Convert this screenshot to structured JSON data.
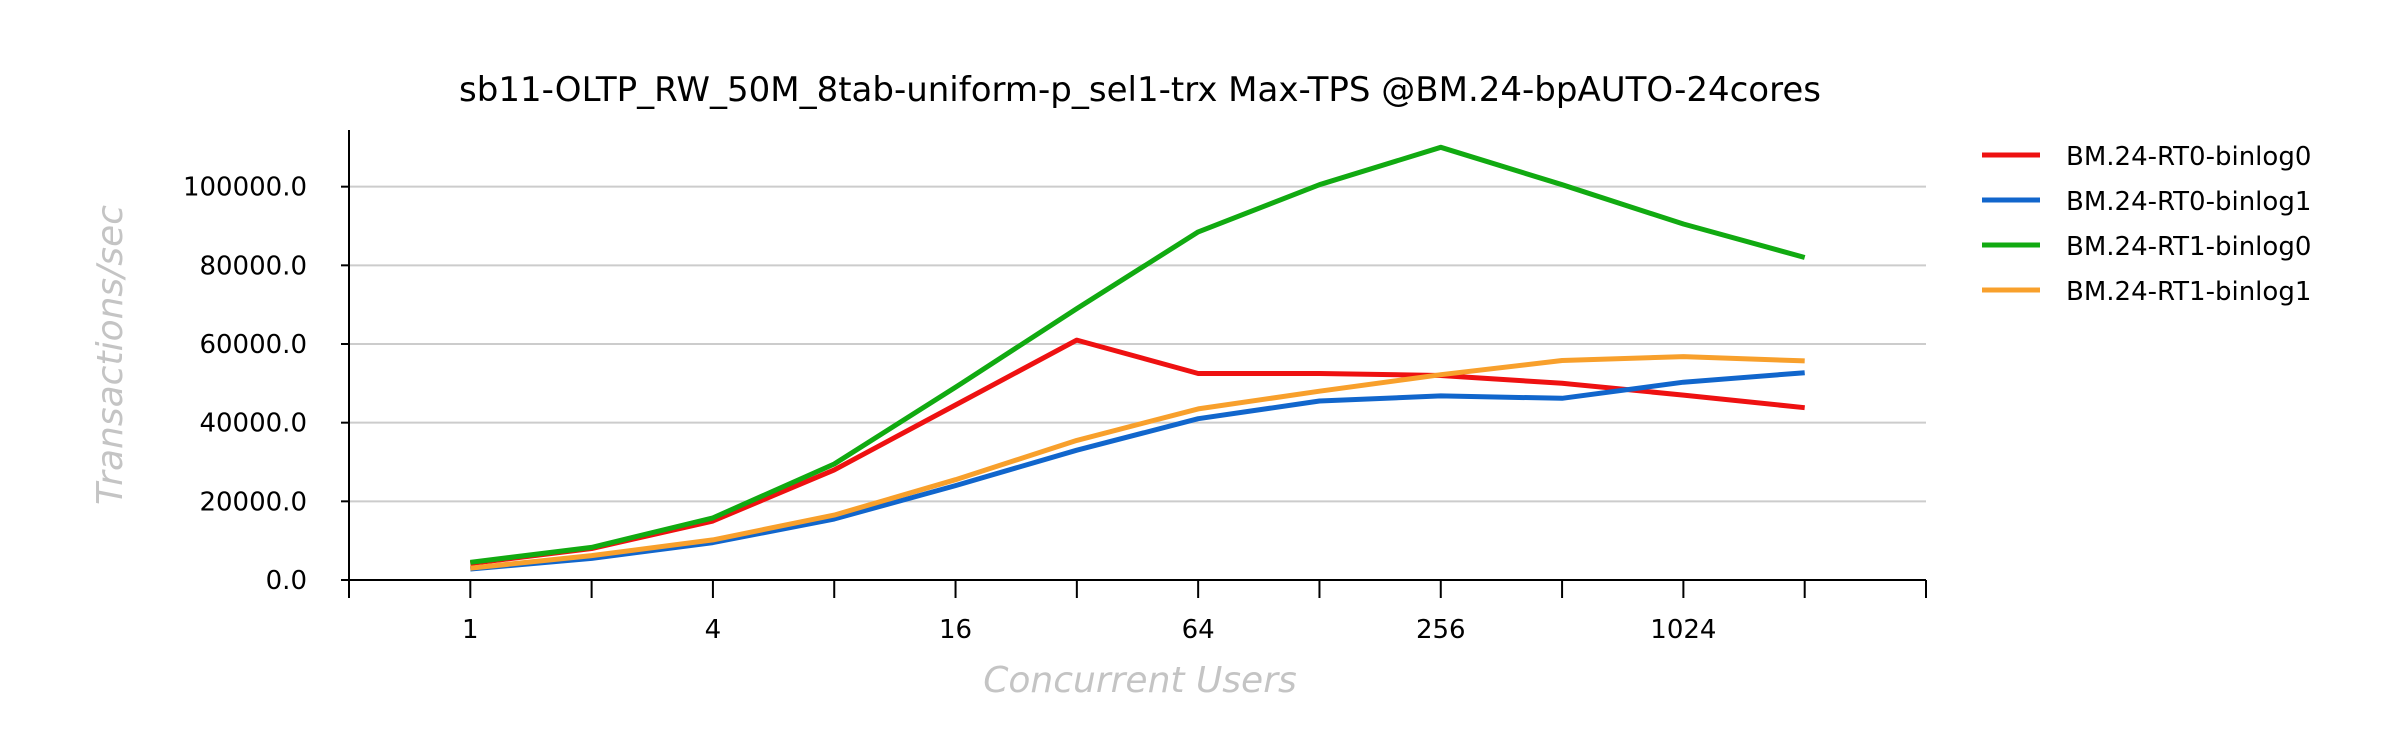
{
  "chart_data": {
    "type": "line",
    "title": "sb11-OLTP_RW_50M_8tab-uniform-p_sel1-trx Max-TPS @BM.24-bpAUTO-24cores",
    "xlabel": "Concurrent Users",
    "ylabel": "Transactions/sec",
    "x_scale": "log2",
    "x": [
      1,
      2,
      4,
      8,
      16,
      32,
      64,
      128,
      256,
      512,
      1024,
      2048
    ],
    "x_tick_labels": [
      "1",
      "4",
      "16",
      "64",
      "256",
      "1024"
    ],
    "x_tick_values": [
      1,
      4,
      16,
      64,
      256,
      1024
    ],
    "xlim": [
      0.5,
      4096
    ],
    "ylim": [
      0,
      110000
    ],
    "y_ticks": [
      0,
      20000,
      40000,
      60000,
      80000,
      100000
    ],
    "y_tick_labels": [
      "0.0",
      "20000.0",
      "40000.0",
      "60000.0",
      "80000.0",
      "100000.0"
    ],
    "grid": "horizontal",
    "legend_position": "right",
    "series": [
      {
        "name": "BM.24-RT0-binlog0",
        "color": "#ee1111",
        "values": [
          4200,
          8000,
          15000,
          28000,
          44500,
          61000,
          52500,
          52500,
          52000,
          50000,
          47000,
          43800
        ]
      },
      {
        "name": "BM.24-RT0-binlog1",
        "color": "#1166cc",
        "values": [
          2800,
          5500,
          9500,
          15500,
          24000,
          33000,
          41000,
          45500,
          46800,
          46200,
          50300,
          52700
        ]
      },
      {
        "name": "BM.24-RT1-binlog0",
        "color": "#11aa11",
        "values": [
          4500,
          8300,
          15800,
          29500,
          49000,
          69000,
          88500,
          100500,
          110000,
          100500,
          90500,
          82000
        ]
      },
      {
        "name": "BM.24-RT1-binlog1",
        "color": "#f8a02c",
        "values": [
          3000,
          6200,
          10200,
          16500,
          25500,
          35500,
          43500,
          48000,
          52200,
          55800,
          56800,
          55700
        ]
      }
    ]
  }
}
